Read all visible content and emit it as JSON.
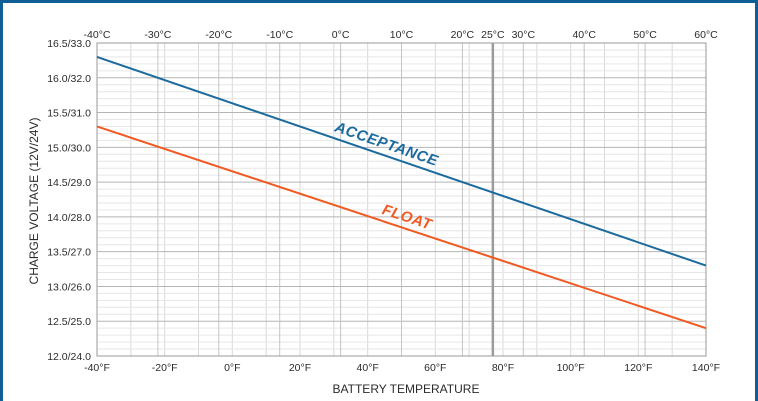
{
  "chart_data": {
    "type": "line",
    "title": "",
    "xlabel": "BATTERY TEMPERATURE",
    "ylabel": "CHARGE VOLTAGE (12V/24V)",
    "x_unit": "°F",
    "xlim": [
      -40,
      140
    ],
    "ylim": [
      12.0,
      16.5
    ],
    "grid": true,
    "x_ticks_bottom": [
      "-40°F",
      "-20°F",
      "0°F",
      "20°F",
      "40°F",
      "60°F",
      "80°F",
      "100°F",
      "120°F",
      "140°F"
    ],
    "x_ticks_top": [
      "-40°C",
      "-30°C",
      "-20°C",
      "-10°C",
      "0°C",
      "10°C",
      "20°C",
      "25°C",
      "30°C",
      "40°C",
      "50°C",
      "60°C"
    ],
    "y_ticks": [
      "12.0/24.0",
      "12.5/25.0",
      "13.0/26.0",
      "13.5/27.0",
      "14.0/28.0",
      "14.5/29.0",
      "15.0/30.0",
      "15.5/31.0",
      "16.0/32.0",
      "16.5/33.0"
    ],
    "reference_line": {
      "x": 77,
      "label": "25°C"
    },
    "series": [
      {
        "name": "ACCEPTANCE",
        "color": "#1b6b9e",
        "x": [
          -40,
          140
        ],
        "y": [
          16.3,
          13.3
        ]
      },
      {
        "name": "FLOAT",
        "color": "#f05a22",
        "x": [
          -40,
          140
        ],
        "y": [
          15.3,
          12.4
        ]
      }
    ]
  }
}
